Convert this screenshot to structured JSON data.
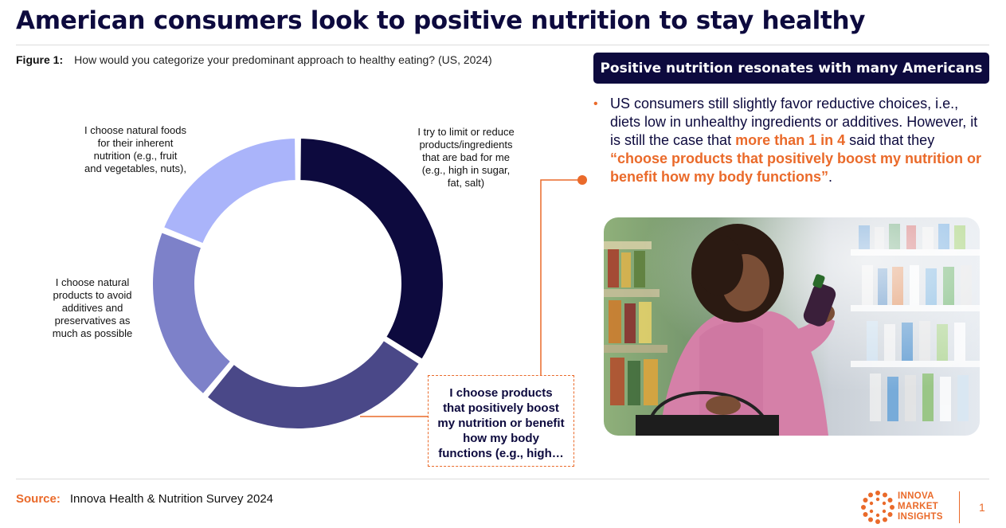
{
  "header": {
    "title": "American consumers look to positive nutrition to stay healthy"
  },
  "figure": {
    "label": "Figure 1:",
    "question": "How would you categorize your predominant approach to healthy eating? (US, 2024)"
  },
  "chart_data": {
    "type": "pie",
    "donut": true,
    "title": "",
    "categories": [
      "I try to limit or reduce products/ingredients that are bad for me (e.g., high in sugar, fat, salt)",
      "I choose products that positively boost my nutrition or benefit how my body functions (e.g., high…",
      "I choose natural products to avoid additives and preservatives as much as possible",
      "I choose natural foods for their inherent nutrition (e.g., fruit and vegetables, nuts),"
    ],
    "values": [
      34,
      27,
      20,
      19
    ],
    "colors": [
      "#0d0a3e",
      "#4a4888",
      "#7d81c9",
      "#aab4fa"
    ],
    "legend": "none"
  },
  "labels": {
    "limit": [
      "I try to limit or reduce",
      "products/ingredients",
      "that are bad for me",
      "(e.g., high in sugar,",
      "fat, salt)"
    ],
    "natural_foods": [
      "I choose natural foods",
      "for their inherent",
      "nutrition (e.g., fruit",
      "and vegetables, nuts),"
    ],
    "natural_products": [
      "I choose natural",
      "products to avoid",
      "additives and",
      "preservatives as",
      "much as possible"
    ],
    "positive": [
      "I choose products",
      "that positively boost",
      "my nutrition or benefit",
      "how my body",
      "functions (e.g., high…"
    ]
  },
  "banner": {
    "text": "Positive nutrition resonates with many Americans"
  },
  "bullet": {
    "part1": "US consumers still slightly favor reductive choices, i.e., diets low in unhealthy ingredients or additives. However, it is still the case that ",
    "highlight1": "more than 1 in 4",
    "part2": " said that they ",
    "highlight2": "“choose products that positively boost my nutrition or benefit how my body functions”",
    "part3": "."
  },
  "footer": {
    "source_label": "Source:",
    "source_text": "Innova Health & Nutrition Survey 2024",
    "logo_lines": [
      "INNOVA",
      "MARKET",
      "INSIGHTS"
    ],
    "page_number": "1"
  },
  "colors": {
    "navy": "#0d0a3e",
    "accent": "#ea6a2a"
  },
  "icons": {
    "photo": "woman-shopping-photo",
    "logo": "innova-logo-mark"
  }
}
